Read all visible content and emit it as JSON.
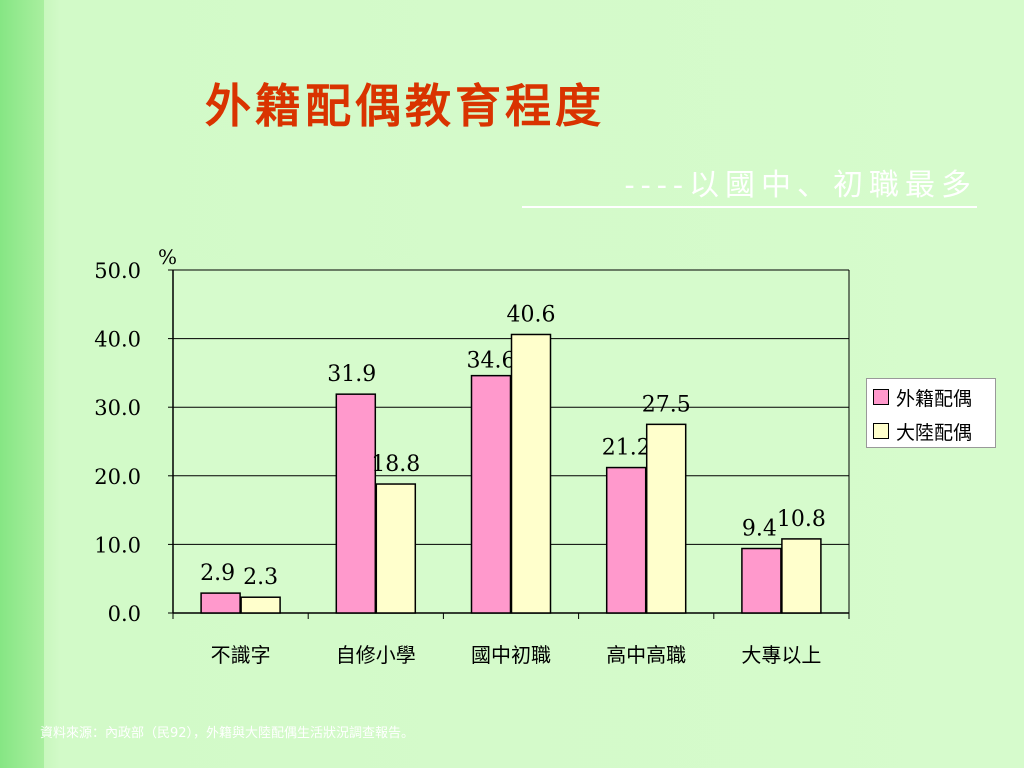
{
  "slide": {
    "title": "外籍配偶教育程度",
    "subtitle": "----以國中、初職最多",
    "source": "資料來源：內政部（民92），外籍與大陸配偶生活狀況調查報告。"
  },
  "colors": {
    "series1": "#ff99cc",
    "series2": "#ffffcc",
    "title": "#d93300"
  },
  "chart_data": {
    "type": "bar",
    "unit_label": "%",
    "categories": [
      "不識字",
      "自修小學",
      "國中初職",
      "高中高職",
      "大專以上"
    ],
    "series": [
      {
        "name": "外籍配偶",
        "values": [
          2.9,
          31.9,
          34.6,
          21.2,
          9.4
        ],
        "labels": [
          "2.9",
          "31.9",
          "34.6",
          "21.2",
          "9.4"
        ]
      },
      {
        "name": "大陸配偶",
        "values": [
          2.3,
          18.8,
          40.6,
          27.5,
          10.8
        ],
        "labels": [
          "2.3",
          "18.8",
          "40.6",
          "27.5",
          "10.8"
        ]
      }
    ],
    "ylim": [
      0,
      50
    ],
    "yticks": [
      "0.0",
      "10.0",
      "20.0",
      "30.0",
      "40.0",
      "50.0"
    ],
    "grid": true,
    "legend": "right"
  }
}
